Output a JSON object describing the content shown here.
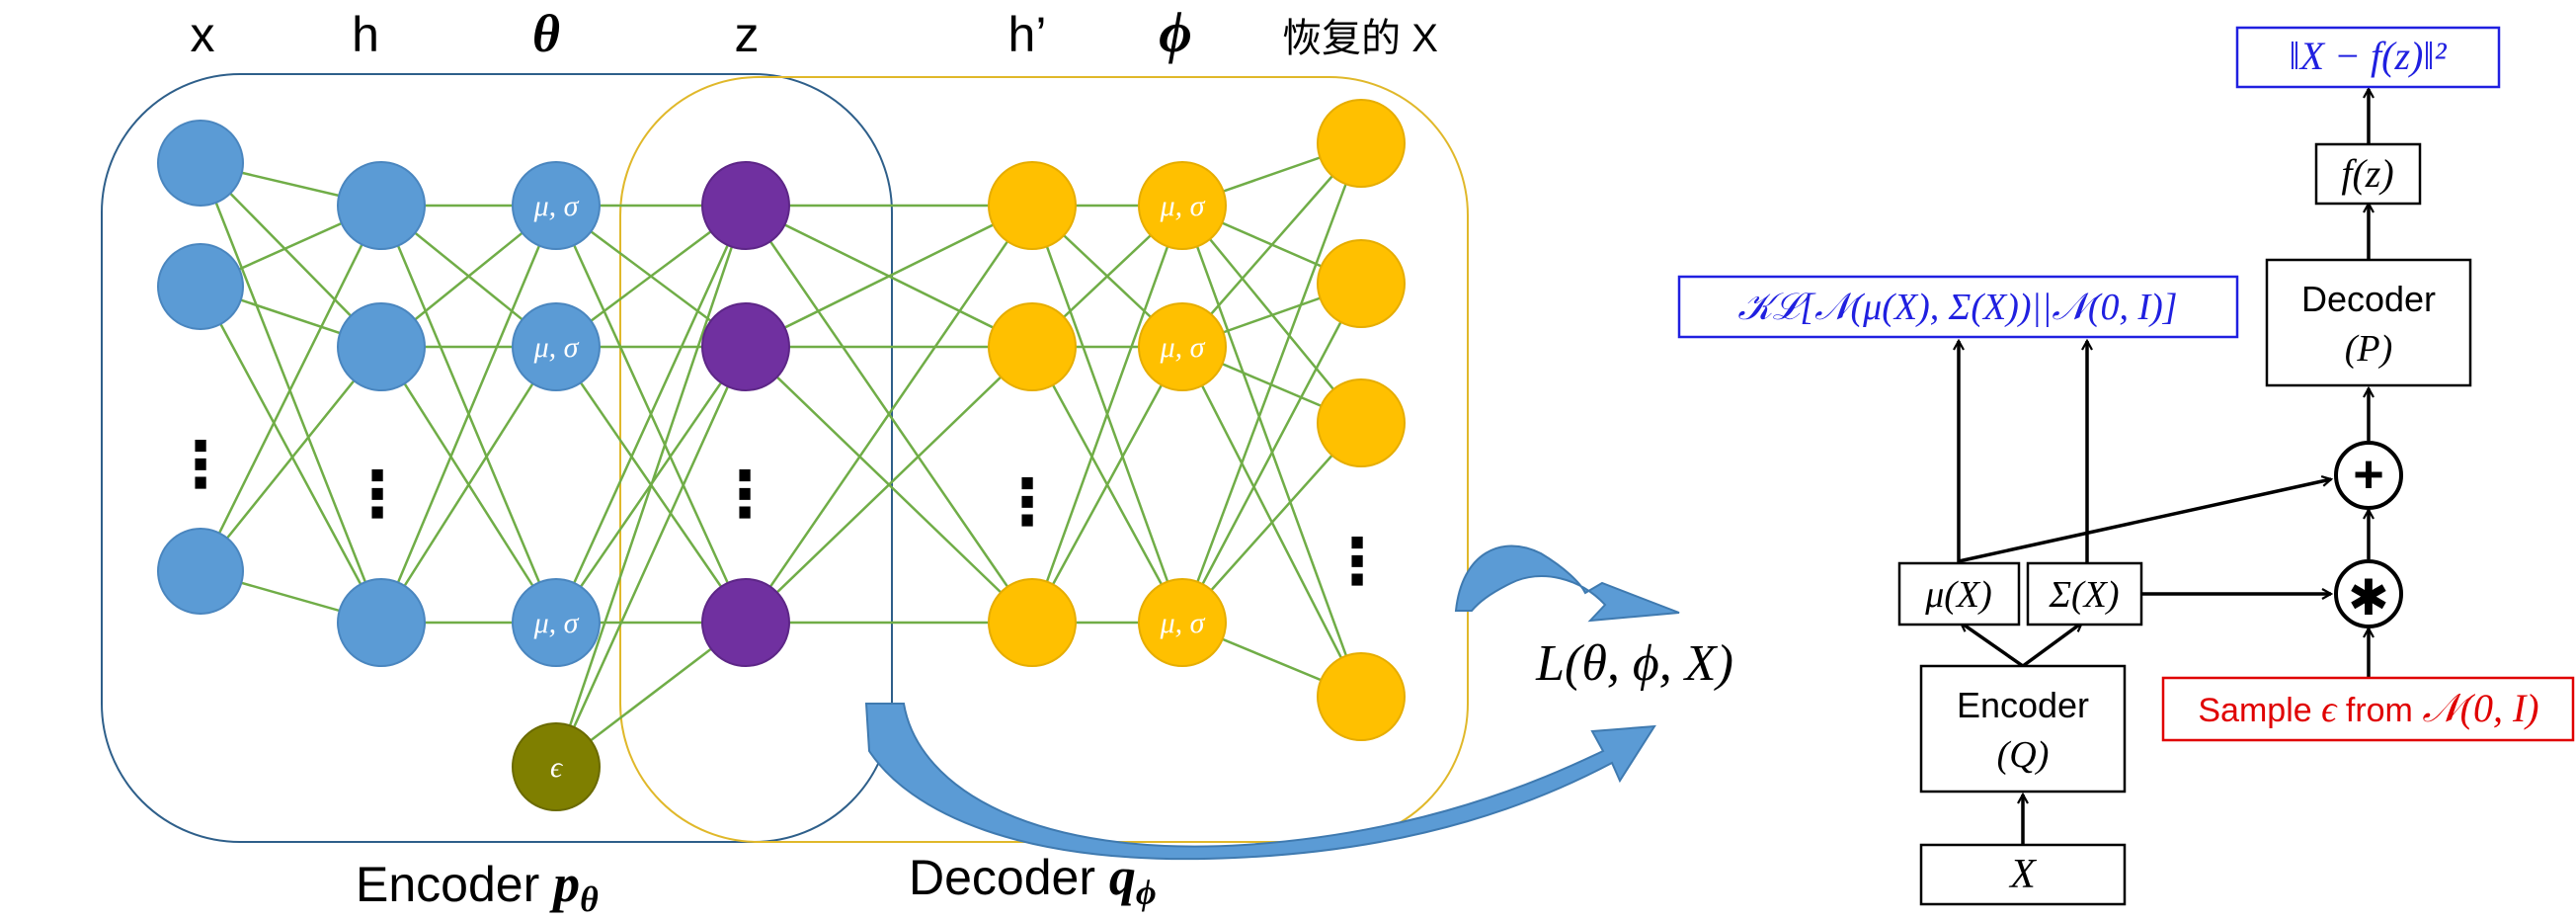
{
  "nn": {
    "column_labels": {
      "x": "x",
      "h": "h",
      "theta": "θ",
      "z": "z",
      "h_prime": "h’",
      "phi": "ϕ",
      "recovered_x": "恢复的 X"
    },
    "param_node_label": "μ, σ",
    "epsilon_label": "ϵ",
    "ellipsis": "⋮",
    "encoder_caption": {
      "text": "Encoder ",
      "math": "p",
      "sub": "θ"
    },
    "decoder_caption": {
      "text": "Decoder ",
      "math": "q",
      "sub": "ϕ"
    },
    "loss_label": "L(θ, ϕ, X)",
    "colors": {
      "input": "#5b9bd5",
      "latent": "#7030a0",
      "decoder": "#ffc000",
      "epsilon": "#7f7f00",
      "edge": "#70ad47",
      "encoder_box": "#2e5f8a",
      "decoder_box": "#e0b82a",
      "arrow": "#5b9bd5"
    }
  },
  "flow": {
    "recon_loss": "‖X − f(z)‖²",
    "fz": "f(z)",
    "decoder": {
      "title": "Decoder",
      "param": "(P)"
    },
    "kl": "𝒦ℒ[𝒩(μ(X), Σ(X))||𝒩(0, I)]",
    "mu": "μ(X)",
    "sigma": "Σ(X)",
    "plus": "+",
    "star": "✱",
    "encoder": {
      "title": "Encoder",
      "param": "(Q)"
    },
    "sample": {
      "prefix": "Sample ",
      "eps": "ϵ",
      "mid": " from ",
      "dist": "𝒩(0, I)"
    },
    "input": "X",
    "colors": {
      "blue": "#2020e0",
      "red": "#e00000",
      "black": "#000000"
    }
  }
}
